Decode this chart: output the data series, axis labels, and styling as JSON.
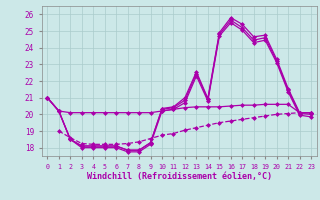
{
  "xlabel": "Windchill (Refroidissement éolien,°C)",
  "background_color": "#cce8e8",
  "grid_color": "#aacccc",
  "line_color": "#aa00aa",
  "hours": [
    0,
    1,
    2,
    3,
    4,
    5,
    6,
    7,
    8,
    9,
    10,
    11,
    12,
    13,
    14,
    15,
    16,
    17,
    18,
    19,
    20,
    21,
    22,
    23
  ],
  "curve1": [
    21.0,
    20.2,
    18.5,
    18.1,
    18.1,
    18.1,
    18.1,
    17.85,
    17.85,
    18.3,
    20.35,
    20.45,
    21.0,
    22.55,
    20.95,
    24.9,
    25.8,
    25.4,
    24.65,
    24.75,
    23.3,
    21.55,
    20.1,
    20.1
  ],
  "curve2": [
    21.0,
    20.2,
    18.5,
    18.1,
    18.1,
    18.1,
    18.1,
    17.85,
    17.85,
    18.3,
    20.3,
    20.4,
    20.85,
    22.45,
    20.9,
    24.8,
    25.65,
    25.2,
    24.45,
    24.6,
    23.2,
    21.45,
    20.05,
    20.0
  ],
  "curve3": [
    21.0,
    20.2,
    18.5,
    18.0,
    18.0,
    18.0,
    18.0,
    17.75,
    17.75,
    18.2,
    20.2,
    20.3,
    20.7,
    22.3,
    20.8,
    24.7,
    25.5,
    25.05,
    24.3,
    24.45,
    23.1,
    21.35,
    19.95,
    19.85
  ],
  "curve_flat": [
    21.0,
    20.2,
    20.1,
    20.1,
    20.1,
    20.1,
    20.1,
    20.1,
    20.1,
    20.1,
    20.2,
    20.3,
    20.4,
    20.45,
    20.45,
    20.45,
    20.5,
    20.55,
    20.55,
    20.6,
    20.6,
    20.6,
    20.1,
    20.1
  ],
  "curve_dash": [
    null,
    19.0,
    18.6,
    18.25,
    18.2,
    18.2,
    18.2,
    18.25,
    18.35,
    18.55,
    18.75,
    18.85,
    19.05,
    19.2,
    19.35,
    19.5,
    19.6,
    19.7,
    19.8,
    19.9,
    20.0,
    20.05,
    20.1,
    20.1
  ],
  "ylim_min": 17.5,
  "ylim_max": 26.5,
  "yticks": [
    18,
    19,
    20,
    21,
    22,
    23,
    24,
    25,
    26
  ],
  "xticks": [
    0,
    1,
    2,
    3,
    4,
    5,
    6,
    7,
    8,
    9,
    10,
    11,
    12,
    13,
    14,
    15,
    16,
    17,
    18,
    19,
    20,
    21,
    22,
    23
  ]
}
